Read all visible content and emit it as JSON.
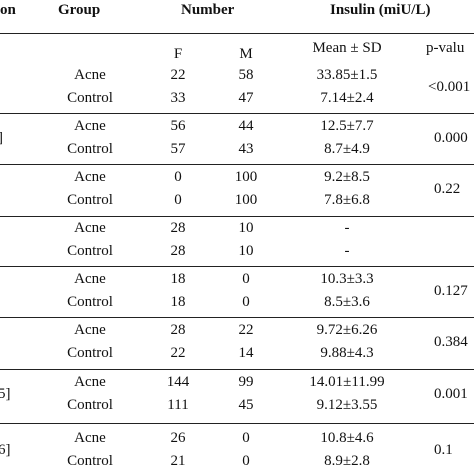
{
  "headers": {
    "study_fragment": "on",
    "group": "Group",
    "number": "Number",
    "insulin": "Insulin (miU/L)"
  },
  "subheaders": {
    "f": "F",
    "m": "M",
    "mean_sd": "Mean ± SD",
    "p_value": "p-valu"
  },
  "blocks": [
    {
      "study_fragment": "",
      "rows": [
        {
          "group": "Acne",
          "f": "22",
          "m": "58",
          "mean": "33.85±1.5"
        },
        {
          "group": "Control",
          "f": "33",
          "m": "47",
          "mean": "7.14±2.4"
        }
      ],
      "p": "<0.001"
    },
    {
      "study_fragment": "]",
      "rows": [
        {
          "group": "Acne",
          "f": "56",
          "m": "44",
          "mean": "12.5±7.7"
        },
        {
          "group": "Control",
          "f": "57",
          "m": "43",
          "mean": "8.7±4.9"
        }
      ],
      "p": "0.000"
    },
    {
      "study_fragment": "",
      "rows": [
        {
          "group": "Acne",
          "f": "0",
          "m": "100",
          "mean": "9.2±8.5"
        },
        {
          "group": "Control",
          "f": "0",
          "m": "100",
          "mean": "7.8±6.8"
        }
      ],
      "p": "0.22"
    },
    {
      "study_fragment": "",
      "rows": [
        {
          "group": "Acne",
          "f": "28",
          "m": "10",
          "mean": "-"
        },
        {
          "group": "Control",
          "f": "28",
          "m": "10",
          "mean": "-"
        }
      ],
      "p": ""
    },
    {
      "study_fragment": "",
      "rows": [
        {
          "group": "Acne",
          "f": "18",
          "m": "0",
          "mean": "10.3±3.3"
        },
        {
          "group": "Control",
          "f": "18",
          "m": "0",
          "mean": "8.5±3.6"
        }
      ],
      "p": "0.127"
    },
    {
      "study_fragment": "",
      "rows": [
        {
          "group": "Acne",
          "f": "28",
          "m": "22",
          "mean": "9.72±6.26"
        },
        {
          "group": "Control",
          "f": "22",
          "m": "14",
          "mean": "9.88±4.3"
        }
      ],
      "p": "0.384"
    },
    {
      "study_fragment": "5]",
      "rows": [
        {
          "group": "Acne",
          "f": "144",
          "m": "99",
          "mean": "14.01±11.99"
        },
        {
          "group": "Control",
          "f": "111",
          "m": "45",
          "mean": "9.12±3.55"
        }
      ],
      "p": "0.001"
    },
    {
      "study_fragment": "6]",
      "rows": [
        {
          "group": "Acne",
          "f": "26",
          "m": "0",
          "mean": "10.8±4.6"
        },
        {
          "group": "Control",
          "f": "21",
          "m": "0",
          "mean": "8.9±2.8"
        }
      ],
      "p": "0.1"
    }
  ]
}
